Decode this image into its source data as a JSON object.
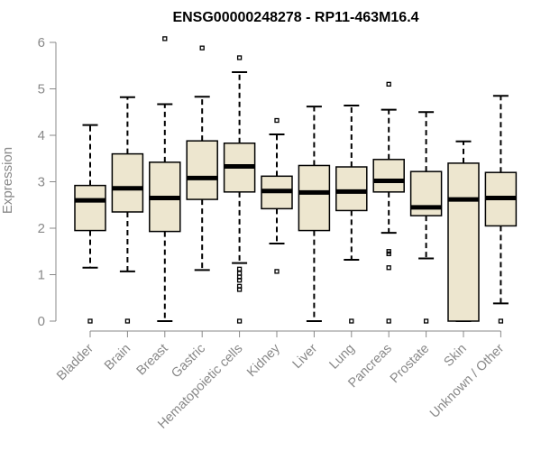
{
  "chart_data": {
    "type": "boxplot",
    "title": "ENSG00000248278 - RP11-463M16.4",
    "xlabel": "",
    "ylabel": "Expression",
    "ylim": [
      0,
      6
    ],
    "yticks": [
      0,
      1,
      2,
      3,
      4,
      5,
      6
    ],
    "colors": {
      "box_fill": "#ede6cf",
      "stroke": "#000000",
      "axis": "#888888"
    },
    "categories": [
      "Bladder",
      "Brain",
      "Breast",
      "Gastric",
      "Hematopoietic cells",
      "Kidney",
      "Liver",
      "Lung",
      "Pancreas",
      "Prostate",
      "Skin",
      "Unknown / Other"
    ],
    "boxes": [
      {
        "name": "Bladder",
        "whisker_low": 1.15,
        "q1": 1.95,
        "median": 2.6,
        "q3": 2.92,
        "whisker_high": 4.22,
        "outliers": [
          0
        ]
      },
      {
        "name": "Brain",
        "whisker_low": 1.07,
        "q1": 2.35,
        "median": 2.86,
        "q3": 3.6,
        "whisker_high": 4.82,
        "outliers": [
          0
        ]
      },
      {
        "name": "Breast",
        "whisker_low": 0.0,
        "q1": 1.93,
        "median": 2.65,
        "q3": 3.42,
        "whisker_high": 4.67,
        "outliers": [
          6.08
        ]
      },
      {
        "name": "Gastric",
        "whisker_low": 1.1,
        "q1": 2.62,
        "median": 3.08,
        "q3": 3.88,
        "whisker_high": 4.83,
        "outliers": [
          5.88
        ]
      },
      {
        "name": "Hematopoietic cells",
        "whisker_low": 1.25,
        "q1": 2.78,
        "median": 3.33,
        "q3": 3.83,
        "whisker_high": 5.36,
        "outliers": [
          5.67,
          1.12,
          1.03,
          0.95,
          0.88,
          0.75,
          0.68,
          0
        ]
      },
      {
        "name": "Kidney",
        "whisker_low": 1.67,
        "q1": 2.42,
        "median": 2.8,
        "q3": 3.12,
        "whisker_high": 4.02,
        "outliers": [
          4.32,
          1.07
        ]
      },
      {
        "name": "Liver",
        "whisker_low": 0.0,
        "q1": 1.95,
        "median": 2.77,
        "q3": 3.35,
        "whisker_high": 4.62,
        "outliers": []
      },
      {
        "name": "Lung",
        "whisker_low": 1.32,
        "q1": 2.38,
        "median": 2.79,
        "q3": 3.32,
        "whisker_high": 4.64,
        "outliers": [
          0
        ]
      },
      {
        "name": "Pancreas",
        "whisker_low": 1.9,
        "q1": 2.78,
        "median": 3.02,
        "q3": 3.48,
        "whisker_high": 4.55,
        "outliers": [
          5.1,
          1.5,
          1.45,
          1.15,
          0
        ]
      },
      {
        "name": "Prostate",
        "whisker_low": 1.35,
        "q1": 2.27,
        "median": 2.45,
        "q3": 3.22,
        "whisker_high": 4.5,
        "outliers": [
          0
        ]
      },
      {
        "name": "Skin",
        "whisker_low": 0.0,
        "q1": 0.0,
        "median": 2.62,
        "q3": 3.4,
        "whisker_high": 3.87,
        "outliers": []
      },
      {
        "name": "Unknown / Other",
        "whisker_low": 0.38,
        "q1": 2.05,
        "median": 2.65,
        "q3": 3.2,
        "whisker_high": 4.85,
        "outliers": [
          0
        ]
      }
    ]
  }
}
